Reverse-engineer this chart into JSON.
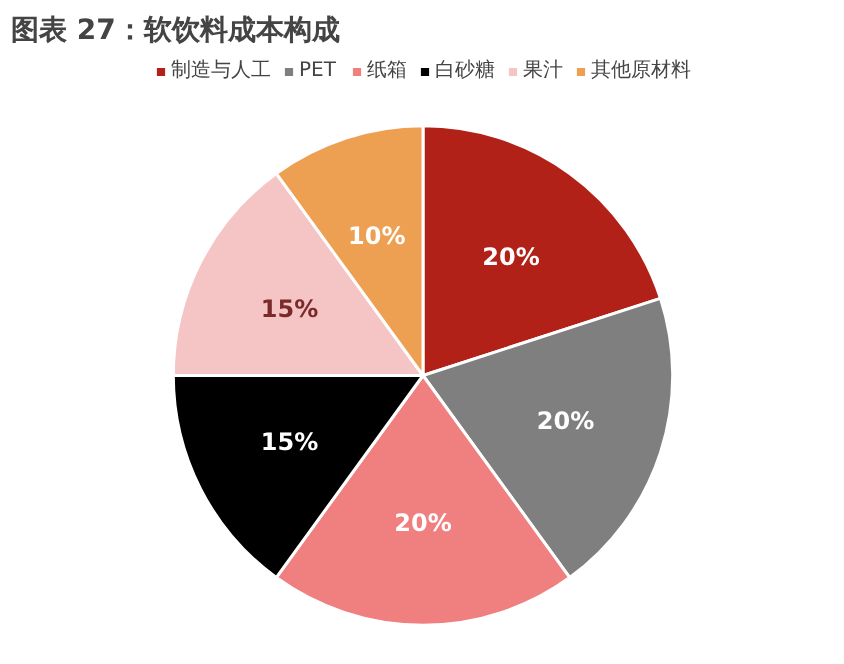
{
  "chart_data": {
    "type": "pie",
    "title": "图表 27：软饮料成本构成",
    "categories": [
      "制造与人工",
      "PET",
      "纸箱",
      "白砂糖",
      "果汁",
      "其他原材料"
    ],
    "values": [
      20,
      20,
      20,
      15,
      15,
      10
    ],
    "colors": [
      "#b22118",
      "#7f7f7f",
      "#f08080",
      "#000000",
      "#f5c4c4",
      "#eea052"
    ],
    "value_labels": [
      "20%",
      "20%",
      "20%",
      "15%",
      "15%",
      "10%"
    ],
    "legend": "top"
  }
}
